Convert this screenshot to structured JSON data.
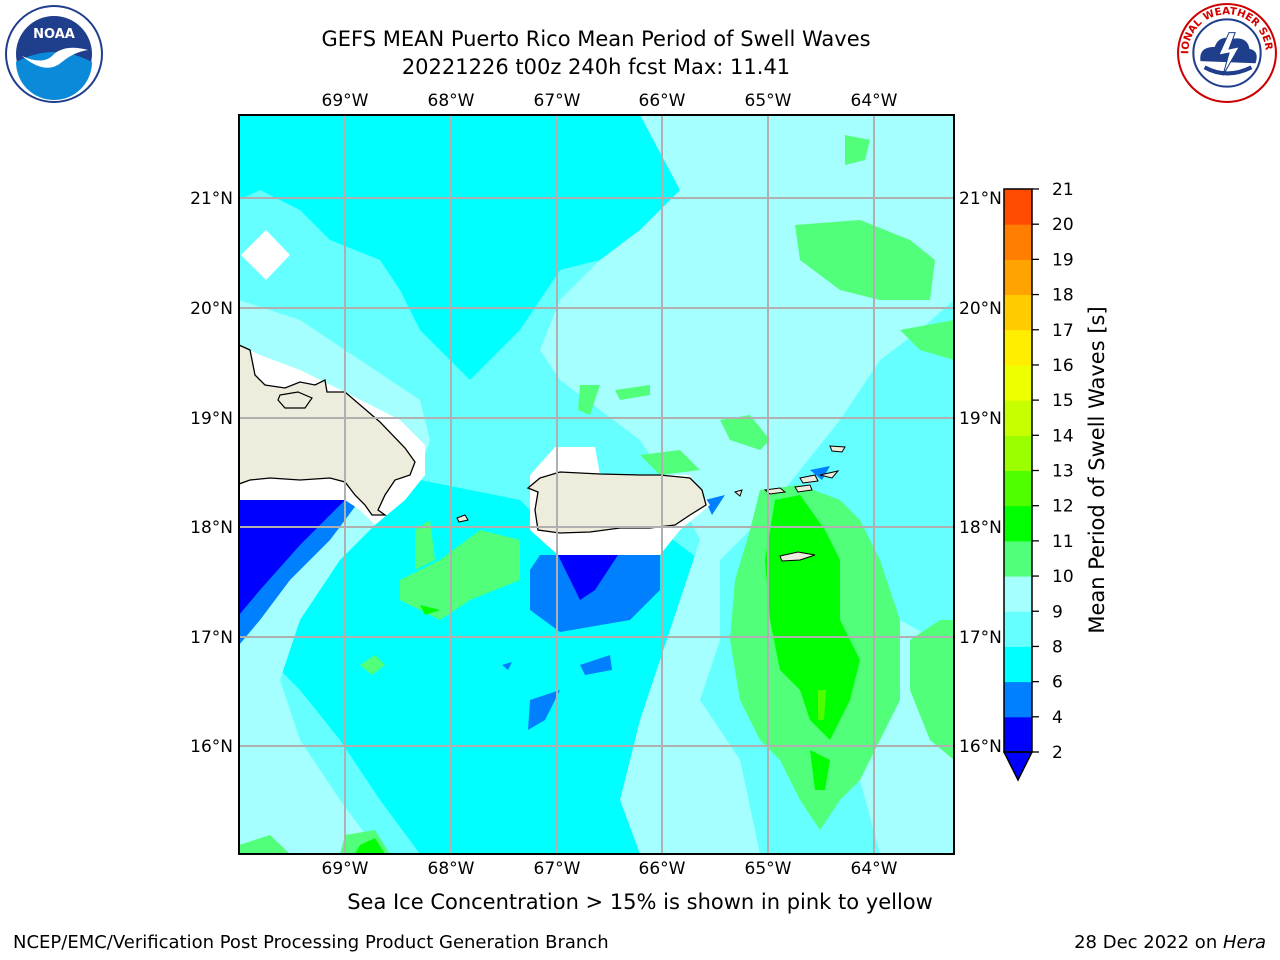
{
  "title": {
    "line1": "GEFS MEAN Puerto Rico Mean Period of Swell Waves",
    "line2": "20221226 t00z 240h fcst   Max: 11.41"
  },
  "lon_labels": [
    "69°W",
    "68°W",
    "67°W",
    "66°W",
    "65°W",
    "64°W"
  ],
  "lat_labels": [
    "21°N",
    "20°N",
    "19°N",
    "18°N",
    "17°N",
    "16°N"
  ],
  "colorbar": {
    "label": "Mean Period of Swell Waves [s]",
    "ticks": [
      "2",
      "4",
      "6",
      "8",
      "9",
      "10",
      "11",
      "12",
      "13",
      "14",
      "15",
      "16",
      "17",
      "18",
      "19",
      "20",
      "21"
    ],
    "colors": [
      "#0000ff",
      "#007fff",
      "#00ffff",
      "#66ffff",
      "#a6ffff",
      "#52ff7a",
      "#00ff00",
      "#4fff00",
      "#9bff00",
      "#c8ff00",
      "#eeff00",
      "#ffee00",
      "#ffcc00",
      "#ffa300",
      "#ff7d00",
      "#ff4b00",
      "#ff0000"
    ]
  },
  "logos": {
    "noaa_text": "NOAA",
    "nws_text": "NATIONAL WEATHER SERVICE"
  },
  "note": "Sea Ice Concentration > 15% is shown in pink to yellow",
  "footer": {
    "left": "NCEP/EMC/Verification Post Processing Product Generation Branch",
    "right_prefix": "28 Dec 2022 on ",
    "right_host": "Hera"
  }
}
